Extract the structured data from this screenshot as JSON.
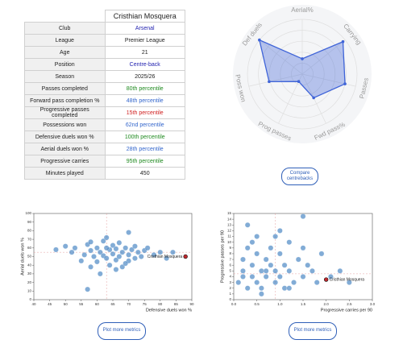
{
  "table": {
    "player": "Cristhian Mosquera",
    "rows": [
      {
        "label": "Club",
        "value": "Arsenal",
        "color": "#2323b0"
      },
      {
        "label": "League",
        "value": "Premier League",
        "color": "#222222"
      },
      {
        "label": "Age",
        "value": "21",
        "color": "#222222"
      },
      {
        "label": "Position",
        "value": "Centre-back",
        "color": "#2323b0"
      },
      {
        "label": "Season",
        "value": "2025/26",
        "color": "#222222"
      },
      {
        "label": "Passes completed",
        "value": "80th percentile",
        "color": "#1f8a1f"
      },
      {
        "label": "Forward pass completion %",
        "value": "48th percentile",
        "color": "#3366cc"
      },
      {
        "label": "Progressive passes completed",
        "value": "15th percentile",
        "color": "#d02020"
      },
      {
        "label": "Possessions won",
        "value": "62nd percentile",
        "color": "#3366cc"
      },
      {
        "label": "Defensive duels won %",
        "value": "100th percentile",
        "color": "#1f8a1f"
      },
      {
        "label": "Aerial duels won %",
        "value": "28th percentile",
        "color": "#3366cc"
      },
      {
        "label": "Progressive carries",
        "value": "95th percentile",
        "color": "#1f8a1f"
      },
      {
        "label": "Minutes played",
        "value": "450",
        "color": "#222222"
      }
    ]
  },
  "buttons": {
    "compare": "Compare centrebacks",
    "plot_left": "Plot more metrics",
    "plot_right": "Plot more metrics"
  },
  "chart_data": [
    {
      "type": "radar",
      "categories": [
        "Aerial%",
        "Carrying",
        "Passes",
        "Fwd pass%",
        "Prog passes",
        "Poss won",
        "Def duels"
      ],
      "values": [
        28,
        95,
        80,
        48,
        15,
        62,
        100
      ],
      "rlim": [
        0,
        100
      ],
      "rticks": [
        20,
        40,
        60,
        80,
        100
      ],
      "color": "#3f64d8"
    },
    {
      "type": "scatter",
      "x_label": "Defensive duels won %",
      "y_label": "Aerial duels won %",
      "xlim": [
        40,
        90
      ],
      "xticks": [
        40,
        45,
        50,
        55,
        60,
        65,
        70,
        75,
        80,
        85,
        90
      ],
      "ylim": [
        0,
        100
      ],
      "yticks": [
        0,
        10,
        20,
        30,
        40,
        50,
        60,
        70,
        80,
        90,
        100
      ],
      "ref_x": 63,
      "ref_y": 55,
      "points": {
        "color": "#3f7fc0",
        "x": [
          47,
          50,
          52,
          53,
          55,
          56,
          57,
          58,
          58,
          59,
          60,
          60,
          61,
          62,
          62,
          63,
          63,
          64,
          64,
          65,
          65,
          66,
          66,
          67,
          67,
          68,
          68,
          69,
          70,
          70,
          71,
          72,
          72,
          73,
          74,
          75,
          76,
          78,
          80,
          82,
          84,
          57,
          61,
          66,
          70,
          63,
          58,
          69
        ],
        "y": [
          58,
          62,
          55,
          60,
          45,
          52,
          64,
          38,
          57,
          50,
          60,
          44,
          55,
          68,
          51,
          72,
          48,
          58,
          40,
          63,
          53,
          46,
          59,
          66,
          50,
          55,
          38,
          60,
          52,
          45,
          58,
          62,
          48,
          55,
          50,
          57,
          60,
          52,
          55,
          48,
          55,
          12,
          30,
          35,
          78,
          60,
          67,
          42
        ]
      },
      "highlight": {
        "name": "Cristhian Mosquera",
        "x": 88,
        "y": 50,
        "color": "#c0282d"
      }
    },
    {
      "type": "scatter",
      "x_label": "Progressive carries per 90",
      "y_label": "Progressive passes per 90",
      "xlim": [
        0,
        3
      ],
      "xticks": [
        {
          "value": 0,
          "label": "0.0"
        },
        0.5,
        {
          "value": 1,
          "label": "1.0"
        },
        1.5,
        {
          "value": 2,
          "label": "2.0"
        },
        2.5,
        {
          "value": 3,
          "label": "3.0"
        }
      ],
      "ylim": [
        0,
        15
      ],
      "yticks": [
        0,
        1,
        2,
        3,
        4,
        5,
        6,
        7,
        8,
        9,
        10,
        11,
        12,
        13,
        14,
        15
      ],
      "ref_x": 0.9,
      "ref_y": 4.5,
      "points": {
        "color": "#3f7fc0",
        "x": [
          0.1,
          0.2,
          0.2,
          0.3,
          0.3,
          0.4,
          0.4,
          0.5,
          0.5,
          0.5,
          0.6,
          0.6,
          0.7,
          0.7,
          0.8,
          0.8,
          0.9,
          0.9,
          1.0,
          1.0,
          1.1,
          1.1,
          1.2,
          1.2,
          1.3,
          1.4,
          1.5,
          1.5,
          1.6,
          1.7,
          1.8,
          1.9,
          2.1,
          2.3,
          0.3,
          0.6,
          0.9,
          1.2,
          0.4,
          0.7,
          1.0,
          0.2,
          1.5,
          2.5
        ],
        "y": [
          3,
          5,
          7,
          2,
          9,
          4,
          6,
          3,
          8,
          11,
          5,
          2,
          7,
          4,
          6,
          9,
          3,
          5,
          8,
          4,
          6,
          2,
          10,
          5,
          3,
          7,
          14.5,
          4,
          6,
          5,
          3,
          8,
          4,
          5,
          13,
          1,
          11,
          2,
          10,
          5,
          12,
          4,
          9,
          3
        ]
      },
      "highlight": {
        "name": "Cristhian Mosquera",
        "x": 2.0,
        "y": 3.5,
        "color": "#c0282d"
      }
    }
  ]
}
